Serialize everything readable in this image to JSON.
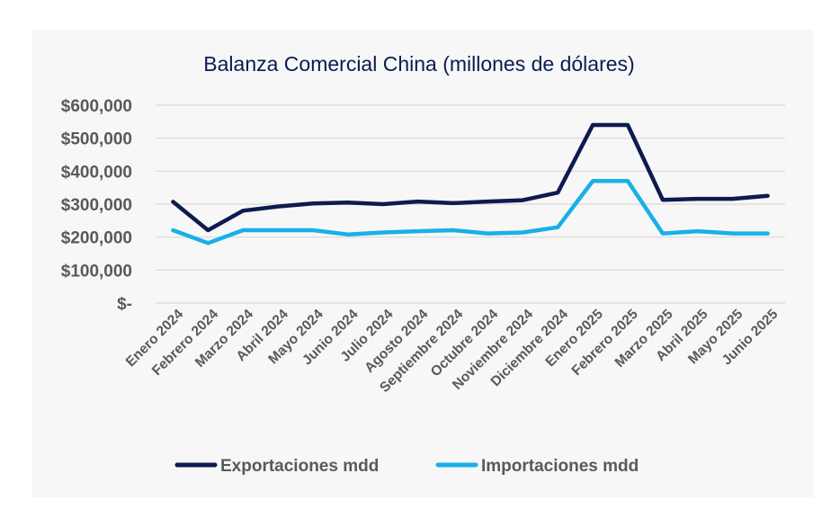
{
  "colors": {
    "exportaciones": "#0d1b4f",
    "importaciones": "#18b0e8"
  },
  "chart_data": {
    "type": "line",
    "title": "Balanza Comercial China (millones de dólares)",
    "xlabel": "",
    "ylabel": "",
    "categories": [
      "Enero 2024",
      "Febrero 2024",
      "Marzo 2024",
      "Abril 2024",
      "Mayo 2024",
      "Junio 2024",
      "Julio 2024",
      "Agosto 2024",
      "Septiembre 2024",
      "Octubre 2024",
      "Noviembre 2024",
      "Diciembre 2024",
      "Enero 2025",
      "Febrero 2025",
      "Marzo 2025",
      "Abril 2025",
      "Mayo 2025",
      "Junio 2025"
    ],
    "ylim": [
      0,
      600000
    ],
    "yticks": [
      0,
      100000,
      200000,
      300000,
      400000,
      500000,
      600000
    ],
    "ytick_labels": [
      "$-",
      "$100,000",
      "$200,000",
      "$300,000",
      "$400,000",
      "$500,000",
      "$600,000"
    ],
    "grid": true,
    "legend_position": "bottom",
    "series": [
      {
        "name": "Exportaciones mdd",
        "color": "#0d1b4f",
        "values": [
          307000,
          221000,
          280000,
          293000,
          302000,
          305000,
          300000,
          308000,
          303000,
          308000,
          312000,
          335000,
          540000,
          540000,
          313000,
          316000,
          316000,
          325000
        ]
      },
      {
        "name": "Importaciones mdd",
        "color": "#18b0e8",
        "values": [
          221000,
          182000,
          221000,
          221000,
          221000,
          208000,
          214000,
          218000,
          221000,
          211000,
          214000,
          230000,
          370000,
          370000,
          211000,
          218000,
          211000,
          211000
        ]
      }
    ]
  }
}
